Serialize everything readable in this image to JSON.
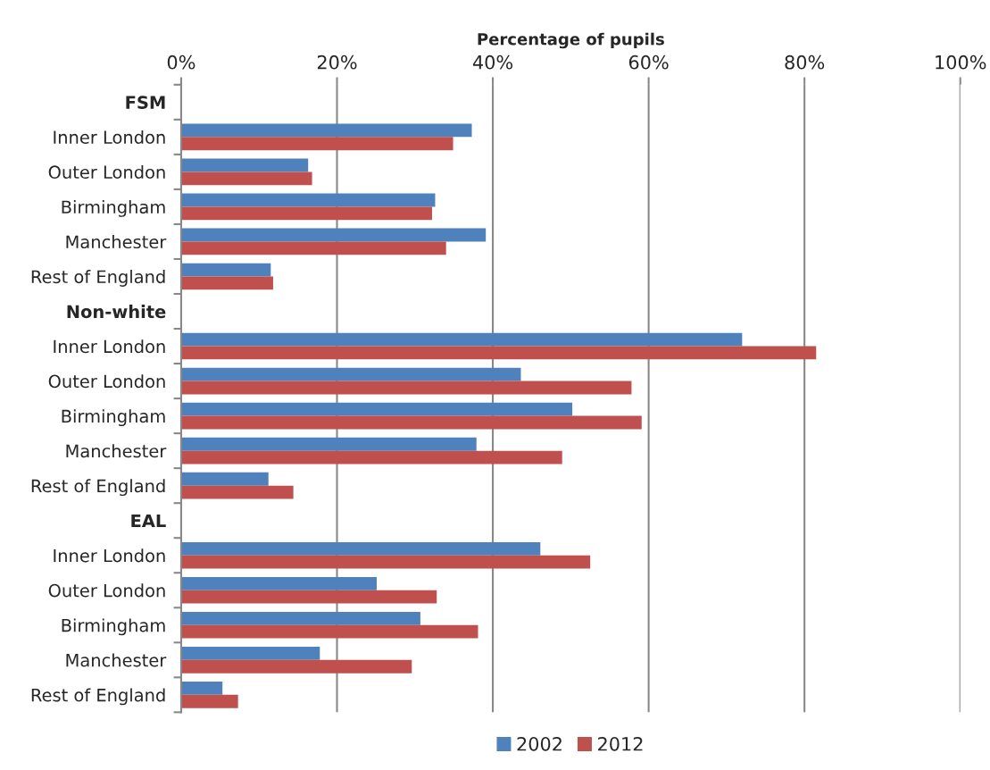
{
  "chart_data": {
    "type": "bar",
    "orientation": "horizontal",
    "xlabel": "Percentage of pupils",
    "categories": [
      "FSM",
      "Inner London",
      "Outer London",
      "Birmingham",
      "Manchester",
      "Rest of England",
      "Non-white",
      "Inner London",
      "Outer London",
      "Birmingham",
      "Manchester",
      "Rest of England",
      "EAL",
      "Inner London",
      "Outer London",
      "Birmingham",
      "Manchester",
      "Rest of England"
    ],
    "series": [
      {
        "name": "2002",
        "color": "#4f81bd",
        "values": [
          null,
          37.3,
          16.3,
          32.6,
          39.1,
          11.5,
          null,
          72.0,
          43.6,
          50.2,
          37.9,
          11.2,
          null,
          46.1,
          25.1,
          30.7,
          17.8,
          5.3
        ]
      },
      {
        "name": "2012",
        "color": "#c0504d",
        "values": [
          null,
          34.9,
          16.8,
          32.2,
          34.0,
          11.8,
          null,
          81.5,
          57.8,
          59.1,
          48.9,
          14.4,
          null,
          52.5,
          32.8,
          38.1,
          29.6,
          7.3
        ]
      }
    ],
    "xlim": [
      0,
      100
    ],
    "xticks": [
      {
        "value": 0,
        "label": "0%"
      },
      {
        "value": 20,
        "label": "20%"
      },
      {
        "value": 40,
        "label": "40%"
      },
      {
        "value": 60,
        "label": "60%"
      },
      {
        "value": 80,
        "label": "80%"
      },
      {
        "value": 100,
        "label": "100%"
      }
    ],
    "grid": "x",
    "legend": "bottom"
  }
}
